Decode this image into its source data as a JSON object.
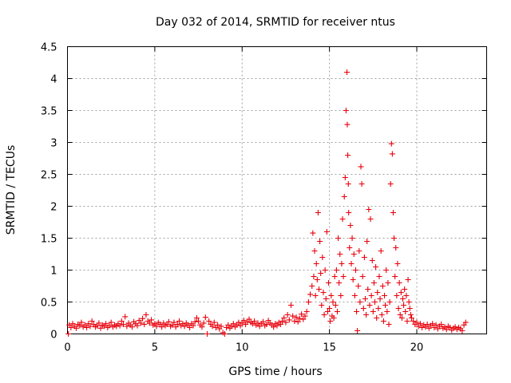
{
  "chart_data": {
    "type": "scatter",
    "title": "Day 032 of 2014, SRMTID for receiver ntus",
    "xlabel": "GPS time / hours",
    "ylabel": "SRMTID / TECUs",
    "xlim": [
      0,
      24
    ],
    "ylim": [
      0,
      4.5
    ],
    "xticks": [
      0,
      5,
      10,
      15,
      20
    ],
    "yticks": [
      0,
      0.5,
      1,
      1.5,
      2,
      2.5,
      3,
      3.5,
      4,
      4.5
    ],
    "xtick_labels": [
      "0",
      "5",
      "10",
      "15",
      "20"
    ],
    "ytick_labels": [
      "0",
      "0.5",
      "1",
      "1.5",
      "2",
      "2.5",
      "3",
      "3.5",
      "4",
      "4.5"
    ],
    "grid": true,
    "marker": "plus",
    "color": "#e8000b",
    "series": [
      {
        "name": "SRMTID",
        "points": [
          [
            0.05,
            0.0
          ],
          [
            0.1,
            0.14
          ],
          [
            0.2,
            0.1
          ],
          [
            0.3,
            0.16
          ],
          [
            0.4,
            0.12
          ],
          [
            0.5,
            0.09
          ],
          [
            0.6,
            0.15
          ],
          [
            0.7,
            0.13
          ],
          [
            0.8,
            0.18
          ],
          [
            0.9,
            0.11
          ],
          [
            1.0,
            0.14
          ],
          [
            1.1,
            0.1
          ],
          [
            1.2,
            0.16
          ],
          [
            1.3,
            0.12
          ],
          [
            1.4,
            0.2
          ],
          [
            1.5,
            0.15
          ],
          [
            1.6,
            0.11
          ],
          [
            1.7,
            0.13
          ],
          [
            1.8,
            0.17
          ],
          [
            1.9,
            0.09
          ],
          [
            2.0,
            0.14
          ],
          [
            2.1,
            0.12
          ],
          [
            2.2,
            0.16
          ],
          [
            2.3,
            0.1
          ],
          [
            2.4,
            0.13
          ],
          [
            2.5,
            0.18
          ],
          [
            2.6,
            0.11
          ],
          [
            2.7,
            0.14
          ],
          [
            2.8,
            0.12
          ],
          [
            2.9,
            0.16
          ],
          [
            3.0,
            0.13
          ],
          [
            3.1,
            0.2
          ],
          [
            3.2,
            0.15
          ],
          [
            3.3,
            0.27
          ],
          [
            3.4,
            0.12
          ],
          [
            3.5,
            0.17
          ],
          [
            3.6,
            0.14
          ],
          [
            3.7,
            0.11
          ],
          [
            3.8,
            0.19
          ],
          [
            3.9,
            0.16
          ],
          [
            4.0,
            0.13
          ],
          [
            4.1,
            0.21
          ],
          [
            4.2,
            0.17
          ],
          [
            4.3,
            0.24
          ],
          [
            4.4,
            0.15
          ],
          [
            4.5,
            0.3
          ],
          [
            4.6,
            0.2
          ],
          [
            4.7,
            0.17
          ],
          [
            4.8,
            0.22
          ],
          [
            4.9,
            0.14
          ],
          [
            5.0,
            0.16
          ],
          [
            5.1,
            0.12
          ],
          [
            5.2,
            0.18
          ],
          [
            5.3,
            0.15
          ],
          [
            5.4,
            0.11
          ],
          [
            5.5,
            0.17
          ],
          [
            5.6,
            0.13
          ],
          [
            5.7,
            0.15
          ],
          [
            5.8,
            0.19
          ],
          [
            5.9,
            0.12
          ],
          [
            6.0,
            0.14
          ],
          [
            6.1,
            0.18
          ],
          [
            6.2,
            0.11
          ],
          [
            6.3,
            0.15
          ],
          [
            6.4,
            0.2
          ],
          [
            6.5,
            0.13
          ],
          [
            6.6,
            0.16
          ],
          [
            6.7,
            0.12
          ],
          [
            6.8,
            0.17
          ],
          [
            6.9,
            0.14
          ],
          [
            7.0,
            0.1
          ],
          [
            7.1,
            0.16
          ],
          [
            7.2,
            0.13
          ],
          [
            7.3,
            0.19
          ],
          [
            7.4,
            0.25
          ],
          [
            7.5,
            0.2
          ],
          [
            7.6,
            0.14
          ],
          [
            7.7,
            0.11
          ],
          [
            7.8,
            0.17
          ],
          [
            7.9,
            0.26
          ],
          [
            8.0,
            0.0
          ],
          [
            8.1,
            0.2
          ],
          [
            8.2,
            0.15
          ],
          [
            8.3,
            0.12
          ],
          [
            8.4,
            0.18
          ],
          [
            8.5,
            0.1
          ],
          [
            8.6,
            0.14
          ],
          [
            8.7,
            0.08
          ],
          [
            8.8,
            0.12
          ],
          [
            8.9,
            0.02
          ],
          [
            9.0,
            0.0
          ],
          [
            9.1,
            0.1
          ],
          [
            9.2,
            0.14
          ],
          [
            9.3,
            0.09
          ],
          [
            9.4,
            0.12
          ],
          [
            9.5,
            0.16
          ],
          [
            9.6,
            0.11
          ],
          [
            9.7,
            0.14
          ],
          [
            9.8,
            0.18
          ],
          [
            9.9,
            0.13
          ],
          [
            10.0,
            0.17
          ],
          [
            10.1,
            0.21
          ],
          [
            10.2,
            0.15
          ],
          [
            10.3,
            0.19
          ],
          [
            10.4,
            0.23
          ],
          [
            10.5,
            0.18
          ],
          [
            10.6,
            0.16
          ],
          [
            10.7,
            0.2
          ],
          [
            10.8,
            0.14
          ],
          [
            10.9,
            0.17
          ],
          [
            11.0,
            0.12
          ],
          [
            11.1,
            0.16
          ],
          [
            11.2,
            0.19
          ],
          [
            11.3,
            0.13
          ],
          [
            11.4,
            0.15
          ],
          [
            11.5,
            0.21
          ],
          [
            11.6,
            0.17
          ],
          [
            11.7,
            0.14
          ],
          [
            11.8,
            0.11
          ],
          [
            11.9,
            0.16
          ],
          [
            12.0,
            0.13
          ],
          [
            12.1,
            0.18
          ],
          [
            12.2,
            0.15
          ],
          [
            12.3,
            0.2
          ],
          [
            12.4,
            0.25
          ],
          [
            12.5,
            0.18
          ],
          [
            12.6,
            0.3
          ],
          [
            12.7,
            0.22
          ],
          [
            12.8,
            0.45
          ],
          [
            12.9,
            0.28
          ],
          [
            13.0,
            0.2
          ],
          [
            13.1,
            0.26
          ],
          [
            13.2,
            0.19
          ],
          [
            13.3,
            0.24
          ],
          [
            13.4,
            0.31
          ],
          [
            13.5,
            0.23
          ],
          [
            13.6,
            0.28
          ],
          [
            13.7,
            0.35
          ],
          [
            13.8,
            0.5
          ],
          [
            13.9,
            0.62
          ],
          [
            14.0,
            0.75
          ],
          [
            14.05,
            1.58
          ],
          [
            14.1,
            0.9
          ],
          [
            14.15,
            1.3
          ],
          [
            14.2,
            0.6
          ],
          [
            14.25,
            1.1
          ],
          [
            14.3,
            0.85
          ],
          [
            14.35,
            1.9
          ],
          [
            14.4,
            0.7
          ],
          [
            14.45,
            1.45
          ],
          [
            14.5,
            0.95
          ],
          [
            14.55,
            0.45
          ],
          [
            14.6,
            1.2
          ],
          [
            14.65,
            0.65
          ],
          [
            14.7,
            0.3
          ],
          [
            14.75,
            1.0
          ],
          [
            14.8,
            0.55
          ],
          [
            14.85,
            1.6
          ],
          [
            14.9,
            0.35
          ],
          [
            14.95,
            0.8
          ],
          [
            15.0,
            0.4
          ],
          [
            15.05,
            0.2
          ],
          [
            15.1,
            0.6
          ],
          [
            15.15,
            0.28
          ],
          [
            15.2,
            0.5
          ],
          [
            15.25,
            0.25
          ],
          [
            15.3,
            0.9
          ],
          [
            15.35,
            0.45
          ],
          [
            15.4,
            1.0
          ],
          [
            15.45,
            0.35
          ],
          [
            15.5,
            1.5
          ],
          [
            15.55,
            0.8
          ],
          [
            15.6,
            1.25
          ],
          [
            15.65,
            0.6
          ],
          [
            15.7,
            1.1
          ],
          [
            15.75,
            1.8
          ],
          [
            15.8,
            0.9
          ],
          [
            15.85,
            2.15
          ],
          [
            15.9,
            2.45
          ],
          [
            15.95,
            3.5
          ],
          [
            16.0,
            4.1
          ],
          [
            16.02,
            3.28
          ],
          [
            16.05,
            2.8
          ],
          [
            16.08,
            2.35
          ],
          [
            16.1,
            1.9
          ],
          [
            16.15,
            1.35
          ],
          [
            16.2,
            1.7
          ],
          [
            16.25,
            1.1
          ],
          [
            16.3,
            1.5
          ],
          [
            16.35,
            0.85
          ],
          [
            16.4,
            1.25
          ],
          [
            16.45,
            0.6
          ],
          [
            16.5,
            1.0
          ],
          [
            16.55,
            0.35
          ],
          [
            16.6,
            0.05
          ],
          [
            16.65,
            0.75
          ],
          [
            16.7,
            1.3
          ],
          [
            16.75,
            0.5
          ],
          [
            16.8,
            2.62
          ],
          [
            16.85,
            2.35
          ],
          [
            16.9,
            0.9
          ],
          [
            16.95,
            0.4
          ],
          [
            17.0,
            1.2
          ],
          [
            17.05,
            0.55
          ],
          [
            17.1,
            0.3
          ],
          [
            17.15,
            1.45
          ],
          [
            17.2,
            0.7
          ],
          [
            17.25,
            1.95
          ],
          [
            17.3,
            0.45
          ],
          [
            17.35,
            1.8
          ],
          [
            17.4,
            0.6
          ],
          [
            17.45,
            1.15
          ],
          [
            17.5,
            0.35
          ],
          [
            17.55,
            0.8
          ],
          [
            17.6,
            0.5
          ],
          [
            17.65,
            1.05
          ],
          [
            17.7,
            0.25
          ],
          [
            17.75,
            0.65
          ],
          [
            17.8,
            0.4
          ],
          [
            17.85,
            0.9
          ],
          [
            17.9,
            0.55
          ],
          [
            17.95,
            1.3
          ],
          [
            18.0,
            0.3
          ],
          [
            18.05,
            0.75
          ],
          [
            18.1,
            0.2
          ],
          [
            18.15,
            0.6
          ],
          [
            18.2,
            0.45
          ],
          [
            18.25,
            1.0
          ],
          [
            18.3,
            0.35
          ],
          [
            18.35,
            0.8
          ],
          [
            18.4,
            0.15
          ],
          [
            18.45,
            0.5
          ],
          [
            18.5,
            2.35
          ],
          [
            18.55,
            2.98
          ],
          [
            18.6,
            2.82
          ],
          [
            18.65,
            1.9
          ],
          [
            18.7,
            1.5
          ],
          [
            18.75,
            0.9
          ],
          [
            18.8,
            1.35
          ],
          [
            18.85,
            0.6
          ],
          [
            18.9,
            1.1
          ],
          [
            18.95,
            0.4
          ],
          [
            19.0,
            0.8
          ],
          [
            19.05,
            0.3
          ],
          [
            19.1,
            0.65
          ],
          [
            19.15,
            0.25
          ],
          [
            19.2,
            0.55
          ],
          [
            19.25,
            0.45
          ],
          [
            19.3,
            0.7
          ],
          [
            19.35,
            0.35
          ],
          [
            19.4,
            0.6
          ],
          [
            19.45,
            0.2
          ],
          [
            19.5,
            0.85
          ],
          [
            19.55,
            0.5
          ],
          [
            19.6,
            0.4
          ],
          [
            19.65,
            0.3
          ],
          [
            19.7,
            0.25
          ],
          [
            19.8,
            0.2
          ],
          [
            19.9,
            0.15
          ],
          [
            20.0,
            0.18
          ],
          [
            20.1,
            0.12
          ],
          [
            20.2,
            0.16
          ],
          [
            20.3,
            0.1
          ],
          [
            20.4,
            0.14
          ],
          [
            20.5,
            0.11
          ],
          [
            20.6,
            0.15
          ],
          [
            20.7,
            0.09
          ],
          [
            20.8,
            0.13
          ],
          [
            20.9,
            0.16
          ],
          [
            21.0,
            0.1
          ],
          [
            21.1,
            0.14
          ],
          [
            21.2,
            0.08
          ],
          [
            21.3,
            0.12
          ],
          [
            21.4,
            0.15
          ],
          [
            21.5,
            0.09
          ],
          [
            21.6,
            0.11
          ],
          [
            21.7,
            0.07
          ],
          [
            21.8,
            0.12
          ],
          [
            21.9,
            0.1
          ],
          [
            22.0,
            0.06
          ],
          [
            22.1,
            0.09
          ],
          [
            22.2,
            0.11
          ],
          [
            22.3,
            0.07
          ],
          [
            22.4,
            0.1
          ],
          [
            22.5,
            0.08
          ],
          [
            22.6,
            0.05
          ],
          [
            22.7,
            0.14
          ],
          [
            22.8,
            0.18
          ]
        ]
      }
    ]
  }
}
